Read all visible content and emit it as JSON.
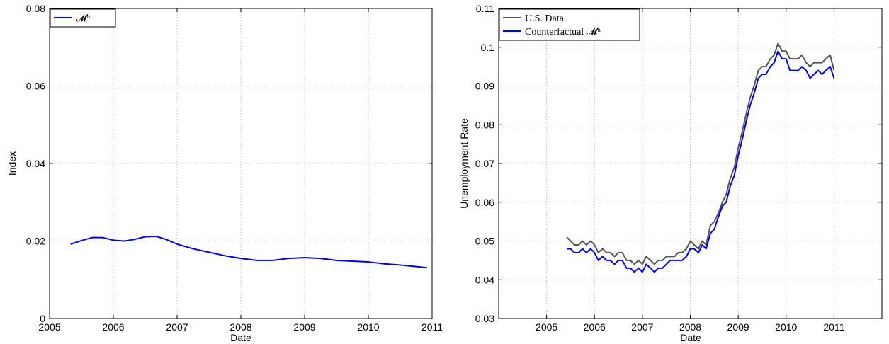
{
  "chart_data": [
    {
      "type": "line",
      "xlabel": "Date",
      "ylabel": "Index",
      "xlim": [
        2005,
        2011
      ],
      "ylim": [
        0,
        0.08
      ],
      "xticks": [
        "2005",
        "2006",
        "2007",
        "2008",
        "2009",
        "2010",
        "2011"
      ],
      "yticks": [
        "0",
        "0.02",
        "0.04",
        "0.06",
        "0.08"
      ],
      "grid": true,
      "legend": "top-left",
      "series": [
        {
          "name": "𝓜ʰ",
          "color": "#0000ff",
          "x": [
            2005.33,
            2005.5,
            2005.67,
            2005.83,
            2006.0,
            2006.17,
            2006.33,
            2006.5,
            2006.67,
            2006.83,
            2007.0,
            2007.25,
            2007.5,
            2007.75,
            2008.0,
            2008.25,
            2008.5,
            2008.75,
            2009.0,
            2009.25,
            2009.5,
            2009.75,
            2010.0,
            2010.25,
            2010.5,
            2010.75,
            2010.92
          ],
          "y": [
            0.0192,
            0.0201,
            0.0209,
            0.0209,
            0.0202,
            0.02,
            0.0204,
            0.0211,
            0.0212,
            0.0204,
            0.0192,
            0.018,
            0.0171,
            0.0162,
            0.0155,
            0.015,
            0.015,
            0.0155,
            0.0157,
            0.0155,
            0.015,
            0.0148,
            0.0146,
            0.0141,
            0.0138,
            0.0134,
            0.0131
          ]
        }
      ]
    },
    {
      "type": "line",
      "xlabel": "Date",
      "ylabel": "Unemployment Rate",
      "xlim": [
        2004,
        2012
      ],
      "ylim": [
        0.03,
        0.11
      ],
      "xticks": [
        "2005",
        "2006",
        "2007",
        "2008",
        "2009",
        "2010",
        "2011"
      ],
      "yticks": [
        "0.03",
        "0.04",
        "0.05",
        "0.06",
        "0.07",
        "0.08",
        "0.09",
        "0.1",
        "0.11"
      ],
      "grid": true,
      "legend": "top-left",
      "series": [
        {
          "name": "U.S. Data",
          "color": "#555555",
          "x": [
            2005.42,
            2005.5,
            2005.58,
            2005.67,
            2005.75,
            2005.83,
            2005.92,
            2006.0,
            2006.08,
            2006.17,
            2006.25,
            2006.33,
            2006.42,
            2006.5,
            2006.58,
            2006.67,
            2006.75,
            2006.83,
            2006.92,
            2007.0,
            2007.08,
            2007.17,
            2007.25,
            2007.33,
            2007.42,
            2007.5,
            2007.58,
            2007.67,
            2007.75,
            2007.83,
            2007.92,
            2008.0,
            2008.08,
            2008.17,
            2008.25,
            2008.33,
            2008.42,
            2008.5,
            2008.58,
            2008.67,
            2008.75,
            2008.83,
            2008.92,
            2009.0,
            2009.08,
            2009.17,
            2009.25,
            2009.33,
            2009.42,
            2009.5,
            2009.58,
            2009.67,
            2009.75,
            2009.83,
            2009.92,
            2010.0,
            2010.08,
            2010.17,
            2010.25,
            2010.33,
            2010.42,
            2010.5,
            2010.58,
            2010.67,
            2010.75,
            2010.83,
            2010.92,
            2011.0
          ],
          "y": [
            0.051,
            0.05,
            0.049,
            0.049,
            0.05,
            0.049,
            0.05,
            0.049,
            0.047,
            0.048,
            0.047,
            0.047,
            0.046,
            0.047,
            0.047,
            0.045,
            0.045,
            0.044,
            0.045,
            0.044,
            0.046,
            0.045,
            0.044,
            0.045,
            0.045,
            0.046,
            0.046,
            0.046,
            0.047,
            0.047,
            0.048,
            0.05,
            0.049,
            0.048,
            0.05,
            0.049,
            0.054,
            0.055,
            0.057,
            0.06,
            0.062,
            0.066,
            0.069,
            0.074,
            0.078,
            0.083,
            0.087,
            0.09,
            0.094,
            0.095,
            0.095,
            0.097,
            0.098,
            0.101,
            0.099,
            0.099,
            0.097,
            0.097,
            0.097,
            0.098,
            0.096,
            0.095,
            0.096,
            0.096,
            0.096,
            0.097,
            0.098,
            0.094
          ]
        },
        {
          "name": "Counterfactual 𝓜ʰ",
          "color": "#0000ff",
          "x": [
            2005.42,
            2005.5,
            2005.58,
            2005.67,
            2005.75,
            2005.83,
            2005.92,
            2006.0,
            2006.08,
            2006.17,
            2006.25,
            2006.33,
            2006.42,
            2006.5,
            2006.58,
            2006.67,
            2006.75,
            2006.83,
            2006.92,
            2007.0,
            2007.08,
            2007.17,
            2007.25,
            2007.33,
            2007.42,
            2007.5,
            2007.58,
            2007.67,
            2007.75,
            2007.83,
            2007.92,
            2008.0,
            2008.08,
            2008.17,
            2008.25,
            2008.33,
            2008.42,
            2008.5,
            2008.58,
            2008.67,
            2008.75,
            2008.83,
            2008.92,
            2009.0,
            2009.08,
            2009.17,
            2009.25,
            2009.33,
            2009.42,
            2009.5,
            2009.58,
            2009.67,
            2009.75,
            2009.83,
            2009.92,
            2010.0,
            2010.08,
            2010.17,
            2010.25,
            2010.33,
            2010.42,
            2010.5,
            2010.58,
            2010.67,
            2010.75,
            2010.83,
            2010.92,
            2011.0
          ],
          "y": [
            0.048,
            0.048,
            0.047,
            0.047,
            0.048,
            0.047,
            0.048,
            0.047,
            0.045,
            0.046,
            0.045,
            0.045,
            0.044,
            0.045,
            0.045,
            0.043,
            0.043,
            0.042,
            0.043,
            0.042,
            0.044,
            0.043,
            0.042,
            0.043,
            0.043,
            0.044,
            0.045,
            0.045,
            0.045,
            0.045,
            0.046,
            0.048,
            0.048,
            0.047,
            0.049,
            0.048,
            0.052,
            0.053,
            0.056,
            0.059,
            0.06,
            0.064,
            0.067,
            0.072,
            0.076,
            0.081,
            0.085,
            0.088,
            0.092,
            0.093,
            0.093,
            0.095,
            0.096,
            0.099,
            0.097,
            0.097,
            0.094,
            0.094,
            0.094,
            0.095,
            0.094,
            0.092,
            0.093,
            0.094,
            0.093,
            0.094,
            0.095,
            0.092
          ]
        }
      ]
    }
  ]
}
